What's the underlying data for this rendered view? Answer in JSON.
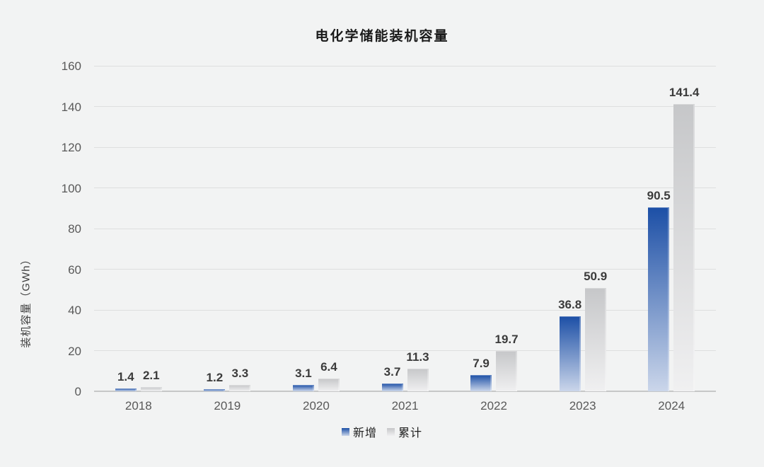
{
  "title": "电化学储能装机容量",
  "chart_data": {
    "type": "bar",
    "title": "电化学储能装机容量",
    "xlabel": "",
    "ylabel": "装机容量（GWh）",
    "categories": [
      "2018",
      "2019",
      "2020",
      "2021",
      "2022",
      "2023",
      "2024"
    ],
    "series": [
      {
        "id": "new",
        "name": "新增",
        "values": [
          1.4,
          1.2,
          3.1,
          3.7,
          7.9,
          36.8,
          90.5
        ],
        "color_top": "#1C4FA6",
        "color_bottom": "#CBD6EA"
      },
      {
        "id": "cumulative",
        "name": "累计",
        "values": [
          2.1,
          3.3,
          6.4,
          11.3,
          19.7,
          50.9,
          141.4
        ],
        "color_top": "#C6C7C9",
        "color_bottom": "#F0F0F1"
      }
    ],
    "ylim": [
      0,
      160
    ],
    "yticks": [
      0,
      20,
      40,
      60,
      80,
      100,
      120,
      140,
      160
    ],
    "grid": true,
    "legend_position": "bottom",
    "value_label_decimals": 1
  },
  "colors": {
    "background": "#F2F3F3",
    "gridline": "#DEDFDF",
    "axis_line": "#C6C7C7",
    "tick_label": "#595959",
    "data_label": "#3B3B3B",
    "title": "#1A1A1A"
  }
}
